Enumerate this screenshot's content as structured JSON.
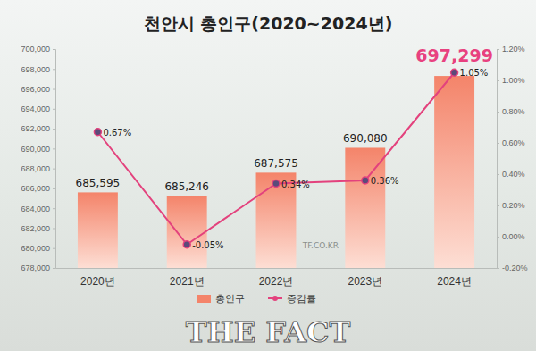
{
  "chart_data": {
    "type": "bar",
    "title": "천안시 총인구(2020~2024년)",
    "categories": [
      "2020년",
      "2021년",
      "2022년",
      "2023년",
      "2024년"
    ],
    "series": [
      {
        "name": "총인구",
        "type": "bar",
        "color": "#f4846a",
        "values": [
          685595,
          685246,
          687575,
          690080,
          697299
        ],
        "value_labels": [
          "685,595",
          "685,246",
          "687,575",
          "690,080",
          "697,299"
        ]
      },
      {
        "name": "증감률",
        "type": "line",
        "axis": "y2",
        "color": "#e3427d",
        "marker": "circle",
        "values": [
          0.67,
          -0.05,
          0.34,
          0.36,
          1.05
        ],
        "value_labels": [
          "0.67%",
          "-0.05%",
          "0.34%",
          "0.36%",
          "1.05%"
        ]
      }
    ],
    "ylim": [
      678000,
      700000
    ],
    "yticks": [
      {
        "value": 678000,
        "label": "678,000"
      },
      {
        "value": 680000,
        "label": "680,000"
      },
      {
        "value": 682000,
        "label": "682,000"
      },
      {
        "value": 684000,
        "label": "684,000"
      },
      {
        "value": 686000,
        "label": "686,000"
      },
      {
        "value": 688000,
        "label": "688,000"
      },
      {
        "value": 690000,
        "label": "690,000"
      },
      {
        "value": 692000,
        "label": "692,000"
      },
      {
        "value": 694000,
        "label": "694,000"
      },
      {
        "value": 696000,
        "label": "696,000"
      },
      {
        "value": 698000,
        "label": "698,000"
      },
      {
        "value": 700000,
        "label": "700,000"
      }
    ],
    "y2lim": [
      -0.2,
      1.2
    ],
    "y2ticks": [
      {
        "value": -0.2,
        "label": "-0.20%"
      },
      {
        "value": 0,
        "label": "0.00%"
      },
      {
        "value": 0.2,
        "label": "0.20%"
      },
      {
        "value": 0.4,
        "label": "0.40%"
      },
      {
        "value": 0.6,
        "label": "0.60%"
      },
      {
        "value": 0.8,
        "label": "0.80%"
      },
      {
        "value": 1.0,
        "label": "1.00%"
      },
      {
        "value": 1.2,
        "label": "1.20%"
      }
    ],
    "grid": false,
    "data_labels": true,
    "legend": "bottom",
    "annotations": [
      "TF.CO.KR",
      "THE FACT"
    ]
  }
}
